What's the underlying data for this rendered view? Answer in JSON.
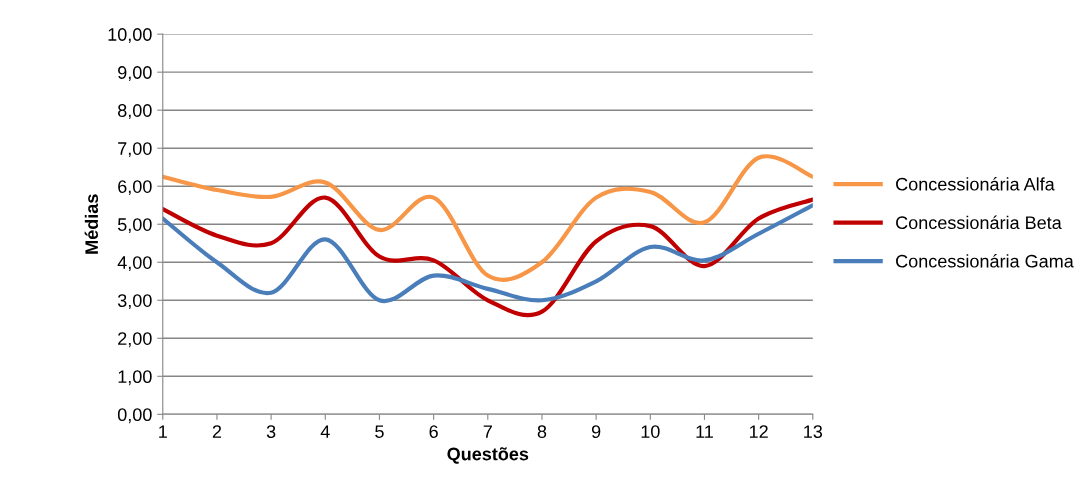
{
  "chart_data": {
    "type": "line",
    "xlabel": "Questões",
    "ylabel": "Médias",
    "categories": [
      "1",
      "2",
      "3",
      "4",
      "5",
      "6",
      "7",
      "8",
      "9",
      "10",
      "11",
      "12",
      "13"
    ],
    "series": [
      {
        "name": "Concessionária Alfa",
        "color": "#f79646",
        "values": [
          6.25,
          5.9,
          5.72,
          6.1,
          4.85,
          5.7,
          3.65,
          4.0,
          5.7,
          5.85,
          5.05,
          6.75,
          6.25
        ]
      },
      {
        "name": "Concessionária Beta",
        "color": "#c00000",
        "values": [
          5.4,
          4.7,
          4.5,
          5.7,
          4.15,
          4.05,
          3.0,
          2.7,
          4.55,
          4.95,
          3.9,
          5.15,
          5.65
        ]
      },
      {
        "name": "Concessionária Gama",
        "color": "#4a7ebb",
        "values": [
          5.15,
          4.0,
          3.2,
          4.6,
          3.0,
          3.65,
          3.3,
          3.0,
          3.5,
          4.4,
          4.05,
          4.75,
          5.5
        ]
      }
    ],
    "ylim": [
      0,
      10
    ],
    "yticks": [
      {
        "value": 0,
        "label": "0,00"
      },
      {
        "value": 1,
        "label": "1,00"
      },
      {
        "value": 2,
        "label": "2,00"
      },
      {
        "value": 3,
        "label": "3,00"
      },
      {
        "value": 4,
        "label": "4,00"
      },
      {
        "value": 5,
        "label": "5,00"
      },
      {
        "value": 6,
        "label": "6,00"
      },
      {
        "value": 7,
        "label": "7,00"
      },
      {
        "value": 8,
        "label": "8,00"
      },
      {
        "value": 9,
        "label": "9,00"
      },
      {
        "value": 10,
        "label": "10,00"
      }
    ],
    "grid": "y",
    "legend": "right",
    "marker": "none",
    "line_style": "solid"
  }
}
